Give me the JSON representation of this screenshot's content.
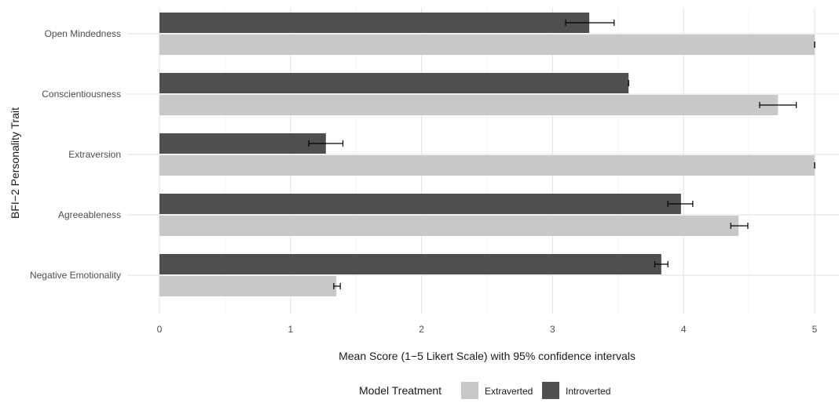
{
  "chart_data": {
    "type": "bar",
    "orientation": "horizontal",
    "title": "",
    "xlabel": "Mean Score (1−5 Likert Scale) with 95% confidence intervals",
    "ylabel": "BFI−2 Personality Trait",
    "xlim": [
      0,
      5
    ],
    "x_ticks": [
      0,
      1,
      2,
      3,
      4,
      5
    ],
    "x_tick_labels": [
      "0",
      "1",
      "2",
      "3",
      "4",
      "5"
    ],
    "grid": true,
    "legend_position": "bottom",
    "legend_title": "Model Treatment",
    "categories": [
      "Open Mindedness",
      "Conscientiousness",
      "Extraversion",
      "Agreeableness",
      "Negative Emotionality"
    ],
    "series": [
      {
        "name": "Introverted",
        "color": "#4f4f4f",
        "values": [
          3.28,
          3.58,
          1.27,
          3.98,
          3.83
        ],
        "ci_low": [
          3.1,
          3.58,
          1.14,
          3.88,
          3.78
        ],
        "ci_high": [
          3.47,
          3.58,
          1.4,
          4.07,
          3.88
        ]
      },
      {
        "name": "Extraverted",
        "color": "#c8c8c8",
        "values": [
          5.0,
          4.72,
          5.0,
          4.42,
          1.35
        ],
        "ci_low": [
          5.0,
          4.58,
          5.0,
          4.36,
          1.33
        ],
        "ci_high": [
          5.0,
          4.86,
          5.0,
          4.49,
          1.38
        ]
      }
    ],
    "legend_order": [
      "Extraverted",
      "Introverted"
    ]
  }
}
